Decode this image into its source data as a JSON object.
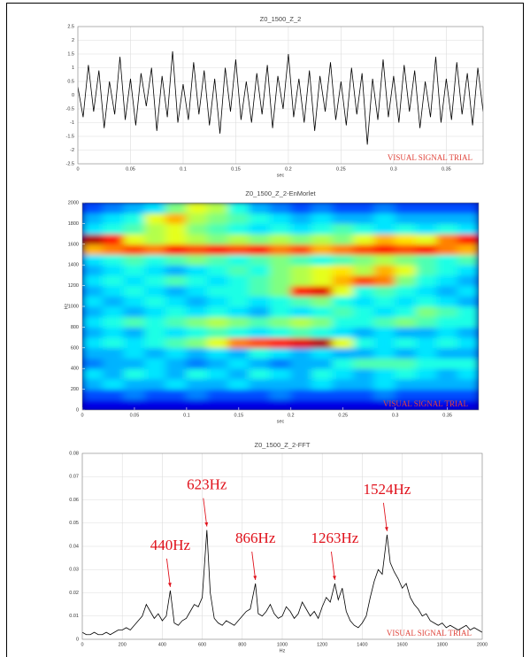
{
  "chart_data": [
    {
      "type": "line",
      "title": "Z0_1500_Z_2",
      "xlabel": "sec",
      "watermark": "VISUAL SIGNAL TRIAL",
      "color": "#000000",
      "grid": true,
      "xlim": [
        0,
        0.385
      ],
      "xticks": [
        0,
        0.05,
        0.1,
        0.15,
        0.2,
        0.25,
        0.3,
        0.35
      ],
      "ylim": [
        -2.5,
        2.5
      ],
      "yticks": [
        -2.5,
        -2,
        -1.5,
        -1,
        -0.5,
        0,
        0.5,
        1,
        1.5,
        2,
        2.5
      ],
      "x": [
        0,
        0.005,
        0.01,
        0.015,
        0.02,
        0.025,
        0.03,
        0.035,
        0.04,
        0.045,
        0.05,
        0.055,
        0.06,
        0.065,
        0.07,
        0.075,
        0.08,
        0.085,
        0.09,
        0.095,
        0.1,
        0.105,
        0.11,
        0.115,
        0.12,
        0.125,
        0.13,
        0.135,
        0.14,
        0.145,
        0.15,
        0.155,
        0.16,
        0.165,
        0.17,
        0.175,
        0.18,
        0.185,
        0.19,
        0.195,
        0.2,
        0.205,
        0.21,
        0.215,
        0.22,
        0.225,
        0.23,
        0.235,
        0.24,
        0.245,
        0.25,
        0.255,
        0.26,
        0.265,
        0.27,
        0.275,
        0.28,
        0.285,
        0.29,
        0.295,
        0.3,
        0.305,
        0.31,
        0.315,
        0.32,
        0.325,
        0.33,
        0.335,
        0.34,
        0.345,
        0.35,
        0.355,
        0.36,
        0.365,
        0.37,
        0.375,
        0.38,
        0.385
      ],
      "values": [
        0.3,
        -0.8,
        1.1,
        -0.6,
        0.9,
        -1.2,
        0.5,
        -0.7,
        1.4,
        -0.9,
        0.6,
        -1.1,
        0.8,
        -0.4,
        1.0,
        -1.3,
        0.7,
        -0.8,
        1.6,
        -1.0,
        0.4,
        -0.9,
        1.2,
        -0.7,
        0.9,
        -1.1,
        0.6,
        -1.4,
        1.0,
        -0.6,
        1.3,
        -0.9,
        0.5,
        -1.0,
        0.8,
        -0.7,
        1.1,
        -1.2,
        0.7,
        -0.5,
        1.5,
        -0.8,
        0.6,
        -1.0,
        0.9,
        -1.3,
        0.7,
        -0.6,
        1.2,
        -0.9,
        0.5,
        -1.1,
        1.0,
        -0.7,
        0.8,
        -1.8,
        0.6,
        -0.9,
        1.3,
        -0.8,
        0.7,
        -1.0,
        1.1,
        -0.6,
        0.9,
        -1.2,
        0.5,
        -0.8,
        1.4,
        -1.0,
        0.6,
        -0.9,
        1.2,
        -0.7,
        0.8,
        -1.1,
        1.0,
        -0.6
      ]
    },
    {
      "type": "heatmap",
      "title": "Z0_1500_Z_2-EnMorlet",
      "xlabel": "sec",
      "ylabel": "Hz",
      "watermark": "VISUAL SIGNAL TRIAL",
      "colormap": "jet",
      "zlim": [
        0,
        1
      ],
      "xlim": [
        0,
        0.38
      ],
      "xticks": [
        0,
        0.05,
        0.1,
        0.15,
        0.2,
        0.25,
        0.3,
        0.35
      ],
      "ylim": [
        0,
        2000
      ],
      "yticks": [
        0,
        200,
        400,
        600,
        800,
        1000,
        1200,
        1400,
        1600,
        1800,
        2000
      ],
      "x": [
        0.01,
        0.03,
        0.05,
        0.07,
        0.09,
        0.11,
        0.13,
        0.15,
        0.17,
        0.19,
        0.21,
        0.23,
        0.25,
        0.27,
        0.29,
        0.31,
        0.33,
        0.35,
        0.37
      ],
      "y": [
        50,
        150,
        250,
        350,
        450,
        550,
        650,
        750,
        850,
        950,
        1050,
        1150,
        1250,
        1350,
        1450,
        1550,
        1650,
        1750,
        1850,
        1950
      ],
      "z": [
        [
          0.1,
          0.1,
          0.1,
          0.1,
          0.1,
          0.1,
          0.1,
          0.1,
          0.1,
          0.1,
          0.1,
          0.1,
          0.1,
          0.1,
          0.1,
          0.1,
          0.1,
          0.1,
          0.1
        ],
        [
          0.2,
          0.2,
          0.25,
          0.2,
          0.2,
          0.25,
          0.2,
          0.2,
          0.2,
          0.25,
          0.2,
          0.2,
          0.2,
          0.2,
          0.25,
          0.2,
          0.2,
          0.2,
          0.2
        ],
        [
          0.3,
          0.35,
          0.3,
          0.3,
          0.35,
          0.3,
          0.3,
          0.35,
          0.3,
          0.3,
          0.3,
          0.35,
          0.3,
          0.3,
          0.35,
          0.3,
          0.3,
          0.3,
          0.3
        ],
        [
          0.35,
          0.3,
          0.4,
          0.35,
          0.3,
          0.4,
          0.35,
          0.3,
          0.4,
          0.35,
          0.3,
          0.4,
          0.35,
          0.3,
          0.35,
          0.4,
          0.35,
          0.3,
          0.35
        ],
        [
          0.25,
          0.3,
          0.3,
          0.35,
          0.3,
          0.25,
          0.3,
          0.35,
          0.3,
          0.25,
          0.3,
          0.3,
          0.4,
          0.45,
          0.45,
          0.45,
          0.4,
          0.4,
          0.4
        ],
        [
          0.3,
          0.3,
          0.35,
          0.3,
          0.35,
          0.3,
          0.35,
          0.3,
          0.4,
          0.35,
          0.3,
          0.35,
          0.3,
          0.3,
          0.35,
          0.3,
          0.35,
          0.3,
          0.3
        ],
        [
          0.35,
          0.4,
          0.35,
          0.4,
          0.45,
          0.5,
          0.6,
          0.75,
          0.8,
          0.85,
          0.9,
          0.95,
          0.6,
          0.4,
          0.35,
          0.4,
          0.35,
          0.4,
          0.35
        ],
        [
          0.3,
          0.35,
          0.3,
          0.4,
          0.35,
          0.4,
          0.45,
          0.4,
          0.35,
          0.4,
          0.45,
          0.4,
          0.35,
          0.3,
          0.35,
          0.3,
          0.3,
          0.35,
          0.3
        ],
        [
          0.35,
          0.4,
          0.45,
          0.4,
          0.45,
          0.5,
          0.55,
          0.5,
          0.45,
          0.5,
          0.55,
          0.5,
          0.4,
          0.4,
          0.45,
          0.5,
          0.45,
          0.4,
          0.4
        ],
        [
          0.3,
          0.35,
          0.3,
          0.35,
          0.4,
          0.35,
          0.4,
          0.35,
          0.3,
          0.4,
          0.35,
          0.4,
          0.45,
          0.4,
          0.35,
          0.4,
          0.5,
          0.45,
          0.4
        ],
        [
          0.35,
          0.3,
          0.35,
          0.4,
          0.35,
          0.3,
          0.35,
          0.4,
          0.35,
          0.4,
          0.45,
          0.5,
          0.4,
          0.35,
          0.4,
          0.35,
          0.4,
          0.35,
          0.3
        ],
        [
          0.3,
          0.35,
          0.4,
          0.35,
          0.3,
          0.35,
          0.4,
          0.4,
          0.45,
          0.5,
          0.85,
          0.9,
          0.6,
          0.4,
          0.45,
          0.4,
          0.35,
          0.3,
          0.35
        ],
        [
          0.35,
          0.4,
          0.35,
          0.4,
          0.45,
          0.4,
          0.35,
          0.4,
          0.45,
          0.5,
          0.55,
          0.6,
          0.7,
          0.8,
          0.75,
          0.5,
          0.4,
          0.35,
          0.3
        ],
        [
          0.3,
          0.35,
          0.4,
          0.35,
          0.3,
          0.35,
          0.4,
          0.45,
          0.4,
          0.5,
          0.55,
          0.6,
          0.65,
          0.55,
          0.7,
          0.6,
          0.45,
          0.4,
          0.35
        ],
        [
          0.35,
          0.4,
          0.45,
          0.4,
          0.45,
          0.5,
          0.45,
          0.4,
          0.45,
          0.5,
          0.45,
          0.4,
          0.45,
          0.5,
          0.55,
          0.5,
          0.45,
          0.4,
          0.45
        ],
        [
          0.7,
          0.75,
          0.8,
          0.75,
          0.85,
          0.8,
          0.85,
          0.8,
          0.85,
          0.75,
          0.8,
          0.7,
          0.75,
          0.8,
          0.85,
          0.8,
          0.85,
          0.75,
          0.7
        ],
        [
          0.95,
          0.85,
          0.6,
          0.55,
          0.6,
          0.55,
          0.5,
          0.55,
          0.5,
          0.55,
          0.5,
          0.55,
          0.5,
          0.6,
          0.7,
          0.65,
          0.6,
          0.75,
          0.85
        ],
        [
          0.35,
          0.4,
          0.45,
          0.55,
          0.6,
          0.5,
          0.45,
          0.4,
          0.35,
          0.4,
          0.35,
          0.4,
          0.45,
          0.4,
          0.35,
          0.4,
          0.35,
          0.4,
          0.35
        ],
        [
          0.3,
          0.35,
          0.4,
          0.6,
          0.7,
          0.55,
          0.5,
          0.45,
          0.4,
          0.35,
          0.3,
          0.35,
          0.3,
          0.3,
          0.35,
          0.3,
          0.3,
          0.3,
          0.3
        ],
        [
          0.2,
          0.25,
          0.3,
          0.35,
          0.5,
          0.6,
          0.55,
          0.4,
          0.3,
          0.25,
          0.2,
          0.25,
          0.2,
          0.2,
          0.25,
          0.2,
          0.2,
          0.2,
          0.2
        ]
      ]
    },
    {
      "type": "line",
      "title": "Z0_1500_Z_2-FFT",
      "xlabel": "Hz",
      "watermark": "VISUAL SIGNAL TRIAL",
      "color": "#000000",
      "grid": true,
      "xlim": [
        0,
        2000
      ],
      "xticks": [
        0,
        200,
        400,
        600,
        800,
        1000,
        1200,
        1400,
        1600,
        1800,
        2000
      ],
      "ylim": [
        0,
        0.08
      ],
      "yticks": [
        0,
        0.01,
        0.02,
        0.03,
        0.04,
        0.05,
        0.06,
        0.07,
        0.08
      ],
      "x": [
        0,
        20,
        40,
        60,
        80,
        100,
        120,
        140,
        160,
        180,
        200,
        220,
        240,
        260,
        280,
        300,
        320,
        340,
        360,
        380,
        400,
        420,
        440,
        460,
        480,
        500,
        520,
        540,
        560,
        580,
        600,
        623,
        640,
        660,
        680,
        700,
        720,
        740,
        760,
        780,
        800,
        820,
        840,
        866,
        880,
        900,
        920,
        940,
        960,
        980,
        1000,
        1020,
        1040,
        1060,
        1080,
        1100,
        1120,
        1140,
        1160,
        1180,
        1200,
        1220,
        1240,
        1263,
        1280,
        1300,
        1320,
        1340,
        1360,
        1380,
        1400,
        1420,
        1440,
        1460,
        1480,
        1500,
        1524,
        1540,
        1560,
        1580,
        1600,
        1620,
        1640,
        1660,
        1680,
        1700,
        1720,
        1740,
        1760,
        1780,
        1800,
        1820,
        1840,
        1860,
        1880,
        1900,
        1920,
        1940,
        1960,
        1980,
        2000
      ],
      "values": [
        0.003,
        0.002,
        0.002,
        0.003,
        0.002,
        0.002,
        0.003,
        0.002,
        0.003,
        0.004,
        0.004,
        0.005,
        0.004,
        0.006,
        0.008,
        0.01,
        0.015,
        0.012,
        0.009,
        0.011,
        0.008,
        0.01,
        0.021,
        0.007,
        0.006,
        0.008,
        0.009,
        0.012,
        0.015,
        0.014,
        0.018,
        0.047,
        0.02,
        0.009,
        0.007,
        0.006,
        0.008,
        0.007,
        0.006,
        0.008,
        0.01,
        0.012,
        0.013,
        0.024,
        0.011,
        0.01,
        0.012,
        0.015,
        0.011,
        0.009,
        0.01,
        0.014,
        0.012,
        0.009,
        0.011,
        0.016,
        0.013,
        0.01,
        0.012,
        0.009,
        0.014,
        0.018,
        0.016,
        0.024,
        0.017,
        0.022,
        0.012,
        0.008,
        0.006,
        0.005,
        0.007,
        0.01,
        0.018,
        0.025,
        0.03,
        0.028,
        0.045,
        0.033,
        0.029,
        0.026,
        0.022,
        0.024,
        0.018,
        0.015,
        0.013,
        0.01,
        0.011,
        0.008,
        0.007,
        0.006,
        0.007,
        0.005,
        0.006,
        0.005,
        0.004,
        0.005,
        0.006,
        0.004,
        0.005,
        0.004,
        0.003
      ],
      "annotations": [
        {
          "text": "440Hz",
          "x": 440,
          "y": 0.021
        },
        {
          "text": "623Hz",
          "x": 623,
          "y": 0.047
        },
        {
          "text": "866Hz",
          "x": 866,
          "y": 0.024
        },
        {
          "text": "1263Hz",
          "x": 1263,
          "y": 0.024
        },
        {
          "text": "1524Hz",
          "x": 1524,
          "y": 0.045
        }
      ]
    }
  ]
}
